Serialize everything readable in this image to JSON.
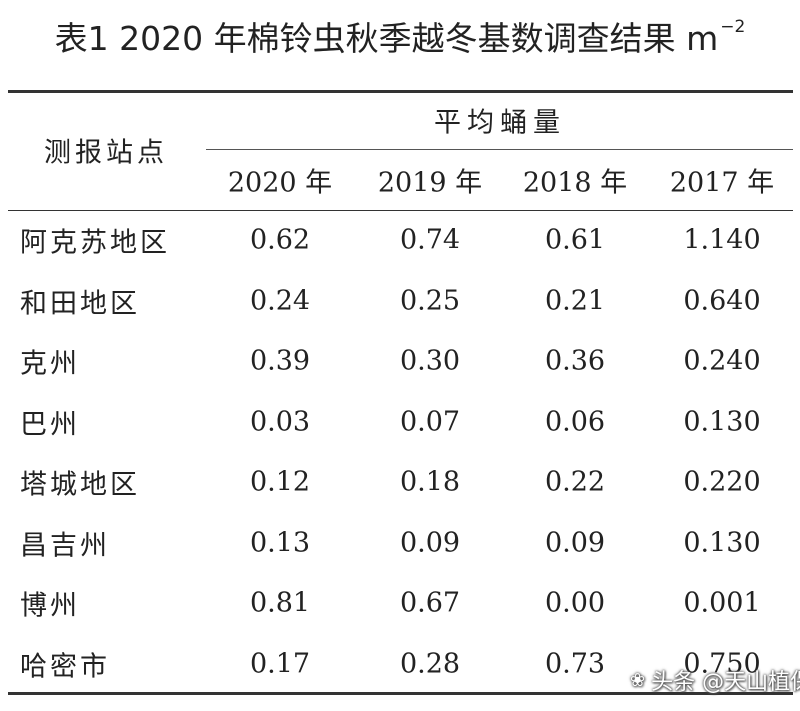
{
  "title": "表1 2020 年棉铃虫秋季越冬基数调查结果 m",
  "title_superscript": "−2",
  "table": {
    "station_header": "测报站点",
    "group_header": "平均蛹量",
    "years": [
      "2020 年",
      "2019 年",
      "2018 年",
      "2017 年"
    ],
    "rows": [
      {
        "station": "阿克苏地区",
        "values": [
          "0.62",
          "0.74",
          "0.61",
          "1.140"
        ]
      },
      {
        "station": "和田地区",
        "values": [
          "0.24",
          "0.25",
          "0.21",
          "0.640"
        ]
      },
      {
        "station": "克州",
        "values": [
          "0.39",
          "0.30",
          "0.36",
          "0.240"
        ]
      },
      {
        "station": "巴州",
        "values": [
          "0.03",
          "0.07",
          "0.06",
          "0.130"
        ]
      },
      {
        "station": "塔城地区",
        "values": [
          "0.12",
          "0.18",
          "0.22",
          "0.220"
        ]
      },
      {
        "station": "昌吉州",
        "values": [
          "0.13",
          "0.09",
          "0.09",
          "0.130"
        ]
      },
      {
        "station": "博州",
        "values": [
          "0.81",
          "0.67",
          "0.00",
          "0.001"
        ]
      },
      {
        "station": "哈密市",
        "values": [
          "0.17",
          "0.28",
          "0.73",
          "0.750"
        ]
      }
    ]
  },
  "watermark": {
    "text": "头条 @天山植保",
    "icon": "sprout-icon"
  }
}
